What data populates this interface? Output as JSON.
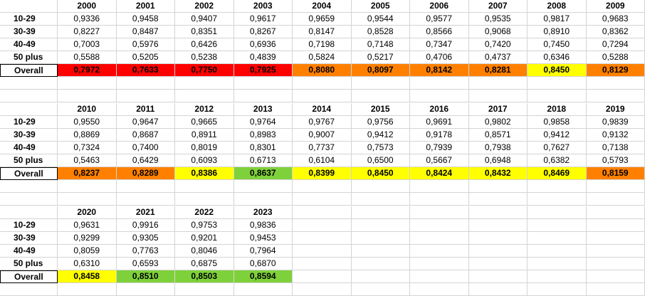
{
  "colors": {
    "red": "#ff0000",
    "orange": "#ff8000",
    "yellow": "#ffff00",
    "green": "#7fd13b",
    "gridline": "#d4d4d4"
  },
  "sheet": {
    "blocks": [
      {
        "years": [
          "2000",
          "2001",
          "2002",
          "2003",
          "2004",
          "2005",
          "2006",
          "2007",
          "2008",
          "2009"
        ],
        "rows": [
          {
            "label": "10-29",
            "values": [
              "0,9336",
              "0,9458",
              "0,9407",
              "0,9617",
              "0,9659",
              "0,9544",
              "0,9577",
              "0,9535",
              "0,9817",
              "0,9683"
            ]
          },
          {
            "label": "30-39",
            "values": [
              "0,8227",
              "0,8487",
              "0,8351",
              "0,8267",
              "0,8147",
              "0,8528",
              "0,8566",
              "0,9068",
              "0,8910",
              "0,8362"
            ]
          },
          {
            "label": "40-49",
            "values": [
              "0,7003",
              "0,5976",
              "0,6426",
              "0,6936",
              "0,7198",
              "0,7148",
              "0,7347",
              "0,7420",
              "0,7450",
              "0,7294"
            ]
          },
          {
            "label": "50 plus",
            "values": [
              "0,5588",
              "0,5205",
              "0,5238",
              "0,4839",
              "0,5824",
              "0,5217",
              "0,4706",
              "0,4737",
              "0,6346",
              "0,5288"
            ]
          }
        ],
        "overall": {
          "label": "Overall",
          "values": [
            "0,7972",
            "0,7633",
            "0,7750",
            "0,7925",
            "0,8080",
            "0,8097",
            "0,8142",
            "0,8281",
            "0,8450",
            "0,8129"
          ],
          "fills": [
            "red",
            "red",
            "red",
            "red",
            "orange",
            "orange",
            "orange",
            "orange",
            "yellow",
            "orange"
          ]
        }
      },
      {
        "years": [
          "2010",
          "2011",
          "2012",
          "2013",
          "2014",
          "2015",
          "2016",
          "2017",
          "2018",
          "2019"
        ],
        "rows": [
          {
            "label": "10-29",
            "values": [
              "0,9550",
              "0,9647",
              "0,9665",
              "0,9764",
              "0,9767",
              "0,9756",
              "0,9691",
              "0,9802",
              "0,9858",
              "0,9839"
            ]
          },
          {
            "label": "30-39",
            "values": [
              "0,8869",
              "0,8687",
              "0,8911",
              "0,8983",
              "0,9007",
              "0,9412",
              "0,9178",
              "0,8571",
              "0,9412",
              "0,9132"
            ]
          },
          {
            "label": "40-49",
            "values": [
              "0,7324",
              "0,7400",
              "0,8019",
              "0,8301",
              "0,7737",
              "0,7573",
              "0,7939",
              "0,7938",
              "0,7627",
              "0,7138"
            ]
          },
          {
            "label": "50 plus",
            "values": [
              "0,5463",
              "0,6429",
              "0,6093",
              "0,6713",
              "0,6104",
              "0,6500",
              "0,5667",
              "0,6948",
              "0,6382",
              "0,5793"
            ]
          }
        ],
        "overall": {
          "label": "Overall",
          "values": [
            "0,8237",
            "0,8289",
            "0,8386",
            "0,8637",
            "0,8399",
            "0,8450",
            "0,8424",
            "0,8432",
            "0,8469",
            "0,8159"
          ],
          "fills": [
            "orange",
            "orange",
            "yellow",
            "green",
            "yellow",
            "yellow",
            "yellow",
            "yellow",
            "yellow",
            "orange"
          ]
        }
      },
      {
        "years": [
          "2020",
          "2021",
          "2022",
          "2023"
        ],
        "rows": [
          {
            "label": "10-29",
            "values": [
              "0,9631",
              "0,9916",
              "0,9753",
              "0,9836"
            ]
          },
          {
            "label": "30-39",
            "values": [
              "0,9299",
              "0,9305",
              "0,9201",
              "0,9453"
            ]
          },
          {
            "label": "40-49",
            "values": [
              "0,8059",
              "0,7763",
              "0,8046",
              "0,7964"
            ]
          },
          {
            "label": "50 plus",
            "values": [
              "0,6310",
              "0,6593",
              "0,6875",
              "0,6870"
            ]
          }
        ],
        "overall": {
          "label": "Overall",
          "values": [
            "0,8458",
            "0,8510",
            "0,8503",
            "0,8594"
          ],
          "fills": [
            "yellow",
            "green",
            "green",
            "green"
          ]
        }
      }
    ]
  }
}
